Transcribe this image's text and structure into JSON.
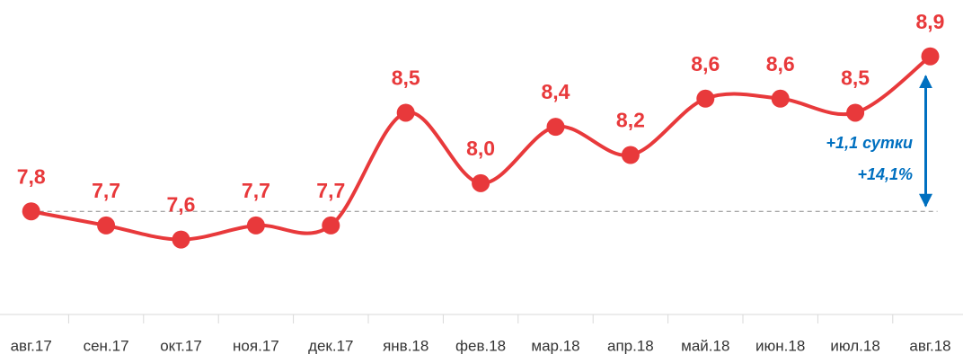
{
  "chart_data": {
    "type": "line",
    "categories": [
      "авг.17",
      "сен.17",
      "окт.17",
      "ноя.17",
      "дек.17",
      "янв.18",
      "фев.18",
      "мар.18",
      "апр.18",
      "май.18",
      "июн.18",
      "июл.18",
      "авг.18"
    ],
    "values": [
      7.8,
      7.7,
      7.6,
      7.7,
      7.7,
      8.5,
      8.0,
      8.4,
      8.2,
      8.6,
      8.6,
      8.5,
      8.9
    ],
    "value_labels": [
      "7,8",
      "7,7",
      "7,6",
      "7,7",
      "7,7",
      "8,5",
      "8,0",
      "8,4",
      "8,2",
      "8,6",
      "8,6",
      "8,5",
      "8,9"
    ],
    "color": "#e8393b",
    "ylim": [
      7.1,
      9.3
    ],
    "annotations": [
      "+1,1 сутки",
      "+14,1%"
    ],
    "annotation_color": "#0070c0"
  }
}
